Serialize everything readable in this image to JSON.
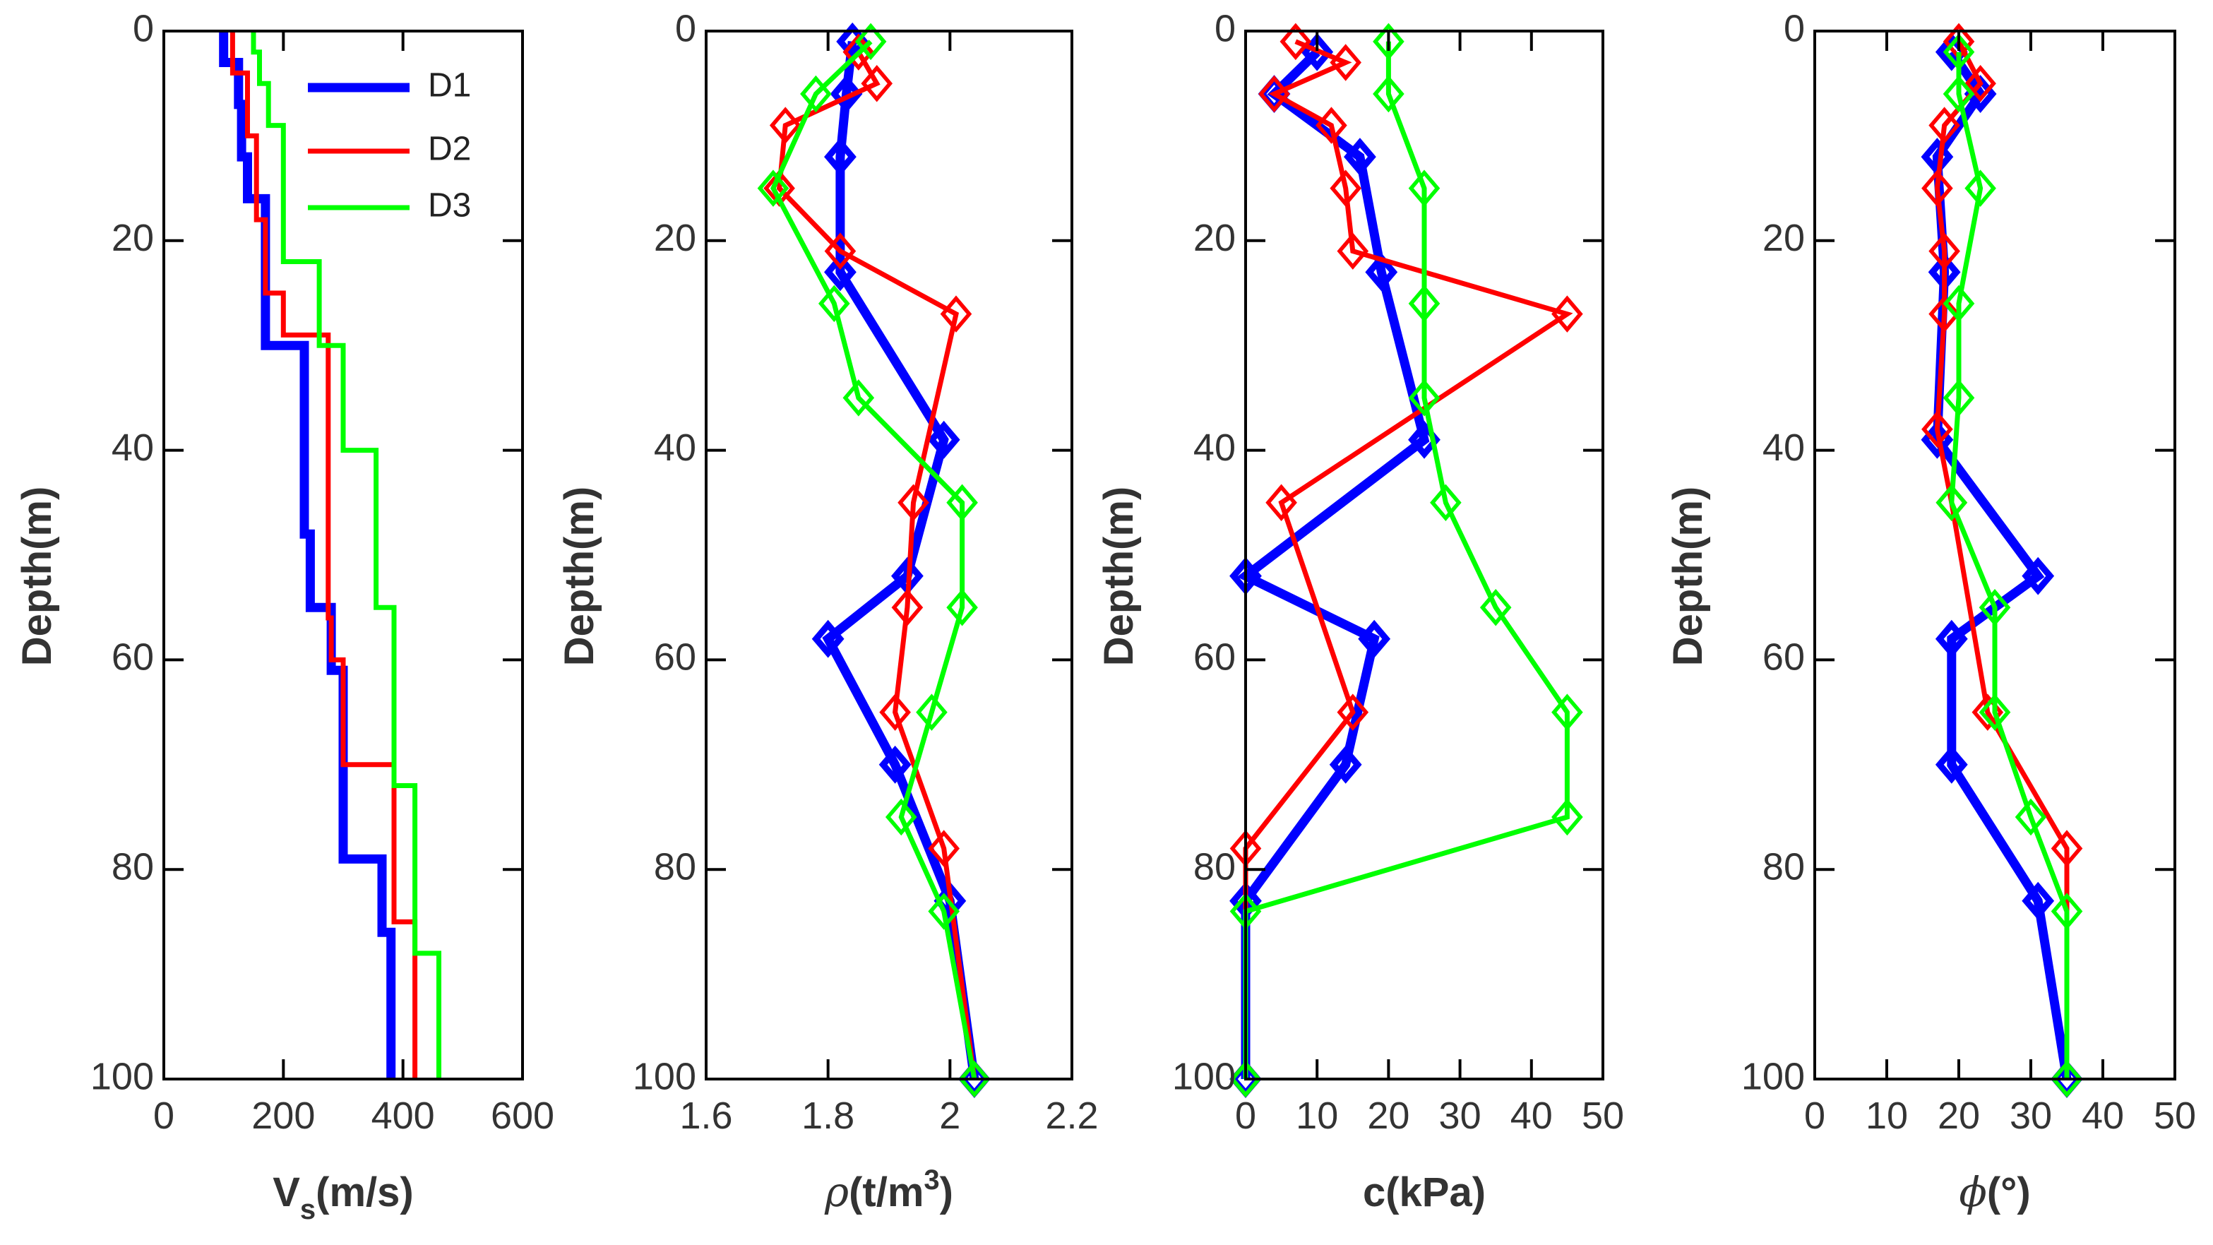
{
  "chart_data": [
    {
      "type": "step",
      "title": "",
      "ylabel": "Depth(m)",
      "xlabel_main": "V",
      "xlabel_sub": "s",
      "xlabel_unit": "(m/s)",
      "xlim": [
        0,
        600
      ],
      "ylim": [
        0,
        100
      ],
      "xticks": [
        0,
        200,
        400,
        600
      ],
      "yticks": [
        0,
        20,
        40,
        60,
        80,
        100
      ],
      "legend": {
        "placement": "top-right",
        "entries": [
          "D1",
          "D2",
          "D3"
        ]
      },
      "series": [
        {
          "name": "D1",
          "color": "#0000FF",
          "points": [
            [
              100,
              0
            ],
            [
              100,
              3
            ],
            [
              125,
              3
            ],
            [
              125,
              7
            ],
            [
              130,
              7
            ],
            [
              130,
              12
            ],
            [
              140,
              12
            ],
            [
              140,
              16
            ],
            [
              170,
              16
            ],
            [
              170,
              30
            ],
            [
              235,
              30
            ],
            [
              235,
              48
            ],
            [
              245,
              48
            ],
            [
              245,
              55
            ],
            [
              280,
              55
            ],
            [
              280,
              61
            ],
            [
              300,
              61
            ],
            [
              300,
              79
            ],
            [
              365,
              79
            ],
            [
              365,
              86
            ],
            [
              380,
              86
            ],
            [
              380,
              100
            ]
          ]
        },
        {
          "name": "D2",
          "color": "#FF0000",
          "points": [
            [
              115,
              0
            ],
            [
              115,
              4
            ],
            [
              140,
              4
            ],
            [
              140,
              10
            ],
            [
              155,
              10
            ],
            [
              155,
              18
            ],
            [
              170,
              18
            ],
            [
              170,
              25
            ],
            [
              200,
              25
            ],
            [
              200,
              29
            ],
            [
              275,
              29
            ],
            [
              275,
              56
            ],
            [
              280,
              56
            ],
            [
              280,
              60
            ],
            [
              300,
              60
            ],
            [
              300,
              70
            ],
            [
              385,
              70
            ],
            [
              385,
              85
            ],
            [
              420,
              85
            ],
            [
              420,
              100
            ]
          ]
        },
        {
          "name": "D3",
          "color": "#00FF00",
          "points": [
            [
              150,
              0
            ],
            [
              150,
              2
            ],
            [
              160,
              2
            ],
            [
              160,
              5
            ],
            [
              175,
              5
            ],
            [
              175,
              9
            ],
            [
              200,
              9
            ],
            [
              200,
              22
            ],
            [
              260,
              22
            ],
            [
              260,
              30
            ],
            [
              300,
              30
            ],
            [
              300,
              40
            ],
            [
              355,
              40
            ],
            [
              355,
              55
            ],
            [
              385,
              55
            ],
            [
              385,
              72
            ],
            [
              420,
              72
            ],
            [
              420,
              88
            ],
            [
              460,
              88
            ],
            [
              460,
              100
            ]
          ]
        }
      ]
    },
    {
      "type": "line",
      "ylabel": "Depth(m)",
      "xlabel_main": "ρ",
      "xlabel_unit": "(t/m",
      "xlabel_sup": "3",
      "xlabel_close": ")",
      "xlim": [
        1.6,
        2.2
      ],
      "ylim": [
        0,
        100
      ],
      "xticks": [
        1.6,
        1.8,
        2,
        2.2
      ],
      "xticklabels": [
        "1.6",
        "1.8",
        "2",
        "2.2"
      ],
      "yticks": [
        0,
        20,
        40,
        60,
        80,
        100
      ],
      "series": [
        {
          "name": "D1",
          "color": "#0000FF",
          "x": [
            1.84,
            1.83,
            1.82,
            1.82,
            1.99,
            1.93,
            1.8,
            1.91,
            2.0,
            2.04
          ],
          "y": [
            1,
            6,
            12,
            23,
            39,
            52,
            58,
            70,
            83,
            100
          ]
        },
        {
          "name": "D2",
          "color": "#FF0000",
          "x": [
            1.85,
            1.88,
            1.73,
            1.72,
            1.82,
            2.01,
            1.94,
            1.93,
            1.91,
            1.99,
            2.04
          ],
          "y": [
            2,
            5,
            9,
            15,
            21,
            27,
            45,
            55,
            65,
            78,
            100
          ]
        },
        {
          "name": "D3",
          "color": "#00FF00",
          "x": [
            1.87,
            1.78,
            1.71,
            1.81,
            1.85,
            2.02,
            2.02,
            1.97,
            1.92,
            1.99,
            2.04
          ],
          "y": [
            1,
            6,
            15,
            26,
            35,
            45,
            55,
            65,
            75,
            84,
            100
          ]
        }
      ]
    },
    {
      "type": "line",
      "ylabel": "Depth(m)",
      "xlabel_main": "c(kPa)",
      "xlim": [
        0,
        50
      ],
      "ylim": [
        0,
        100
      ],
      "xticks": [
        0,
        10,
        20,
        30,
        40,
        50
      ],
      "yticks": [
        0,
        20,
        40,
        60,
        80,
        100
      ],
      "series": [
        {
          "name": "D1",
          "color": "#0000FF",
          "x": [
            10,
            4,
            16,
            19,
            25,
            0,
            18,
            14,
            0,
            0
          ],
          "y": [
            2,
            6,
            12,
            23,
            39,
            52,
            58,
            70,
            83,
            100
          ]
        },
        {
          "name": "D2",
          "color": "#FF0000",
          "x": [
            7,
            14,
            4,
            12,
            14,
            15,
            45,
            5,
            15,
            0,
            0
          ],
          "y": [
            1,
            3,
            6,
            9,
            15,
            21,
            27,
            45,
            65,
            78,
            100
          ]
        },
        {
          "name": "D3",
          "color": "#00FF00",
          "x": [
            20,
            20,
            25,
            25,
            25,
            28,
            35,
            45,
            45,
            0,
            0
          ],
          "y": [
            1,
            6,
            15,
            26,
            35,
            45,
            55,
            65,
            75,
            84,
            100
          ]
        }
      ]
    },
    {
      "type": "line",
      "ylabel": "Depth(m)",
      "xlabel_main": "ϕ",
      "xlabel_unit": "(°)",
      "xlim": [
        0,
        50
      ],
      "ylim": [
        0,
        100
      ],
      "xticks": [
        0,
        10,
        20,
        30,
        40,
        50
      ],
      "yticks": [
        0,
        20,
        40,
        60,
        80,
        100
      ],
      "series": [
        {
          "name": "D1",
          "color": "#0000FF",
          "x": [
            19,
            23,
            17,
            18,
            17,
            31,
            19,
            19,
            31,
            35
          ],
          "y": [
            2,
            6,
            12,
            23,
            39,
            52,
            58,
            70,
            83,
            100
          ]
        },
        {
          "name": "D2",
          "color": "#FF0000",
          "x": [
            20,
            23,
            18,
            17,
            18,
            18,
            17,
            19,
            24,
            35,
            35
          ],
          "y": [
            1,
            5,
            9,
            15,
            21,
            27,
            38,
            45,
            65,
            78,
            100
          ]
        },
        {
          "name": "D3",
          "color": "#00FF00",
          "x": [
            20,
            20,
            23,
            20,
            20,
            19,
            25,
            25,
            30,
            35,
            35
          ],
          "y": [
            2,
            6,
            15,
            26,
            35,
            45,
            55,
            65,
            75,
            84,
            100
          ]
        }
      ]
    }
  ]
}
